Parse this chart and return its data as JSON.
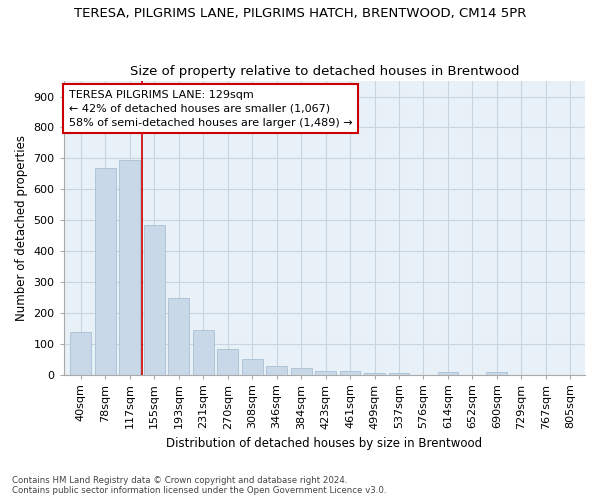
{
  "title1": "TERESA, PILGRIMS LANE, PILGRIMS HATCH, BRENTWOOD, CM14 5PR",
  "title2": "Size of property relative to detached houses in Brentwood",
  "xlabel": "Distribution of detached houses by size in Brentwood",
  "ylabel": "Number of detached properties",
  "footnote": "Contains HM Land Registry data © Crown copyright and database right 2024.\nContains public sector information licensed under the Open Government Licence v3.0.",
  "bar_labels": [
    "40sqm",
    "78sqm",
    "117sqm",
    "155sqm",
    "193sqm",
    "231sqm",
    "270sqm",
    "308sqm",
    "346sqm",
    "384sqm",
    "423sqm",
    "461sqm",
    "499sqm",
    "537sqm",
    "576sqm",
    "614sqm",
    "652sqm",
    "690sqm",
    "729sqm",
    "767sqm",
    "805sqm"
  ],
  "bar_values": [
    138,
    670,
    693,
    483,
    248,
    145,
    82,
    50,
    28,
    20,
    12,
    10,
    4,
    5,
    0,
    8,
    0,
    8,
    0,
    0,
    0
  ],
  "bar_color": "#c8d8e8",
  "bar_edge_color": "#a0b8cc",
  "vline_x": 2.5,
  "vline_color": "#cc0000",
  "annotation_text": "TERESA PILGRIMS LANE: 129sqm\n← 42% of detached houses are smaller (1,067)\n58% of semi-detached houses are larger (1,489) →",
  "annotation_box_color": "#ffffff",
  "annotation_box_edge": "#cc0000",
  "ylim": [
    0,
    950
  ],
  "yticks": [
    0,
    100,
    200,
    300,
    400,
    500,
    600,
    700,
    800,
    900
  ],
  "background_color": "#ffffff",
  "plot_bg_color": "#e8f0f8",
  "grid_color": "#c8d4e0",
  "title1_fontsize": 9.5,
  "title2_fontsize": 9.5,
  "axis_fontsize": 8.5,
  "tick_fontsize": 8,
  "annot_fontsize": 8
}
